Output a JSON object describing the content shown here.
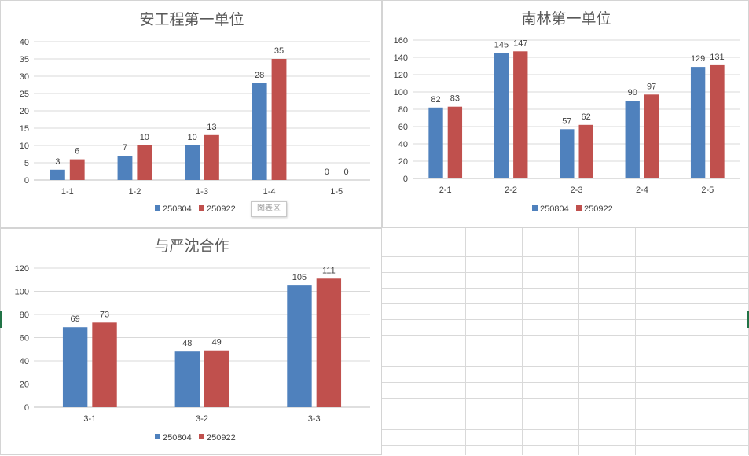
{
  "tooltip": {
    "label": "图表区"
  },
  "colors": {
    "series1": "#4f81bd",
    "series2": "#c0504d",
    "grid": "#d9d9d9",
    "axis": "#bfbfbf"
  },
  "chart_data": [
    {
      "type": "bar",
      "title": "安工程第一单位",
      "categories": [
        "1-1",
        "1-2",
        "1-3",
        "1-4",
        "1-5"
      ],
      "series": [
        {
          "name": "250804",
          "values": [
            3,
            7,
            10,
            28,
            0
          ]
        },
        {
          "name": "250922",
          "values": [
            6,
            10,
            13,
            35,
            0
          ]
        }
      ],
      "yticks": [
        "0",
        "5",
        "10",
        "15",
        "20",
        "25",
        "30",
        "35",
        "40"
      ],
      "ylim": [
        0,
        40
      ],
      "legend": "bottom",
      "grid": true
    },
    {
      "type": "bar",
      "title": "南林第一单位",
      "categories": [
        "2-1",
        "2-2",
        "2-3",
        "2-4",
        "2-5"
      ],
      "series": [
        {
          "name": "250804",
          "values": [
            82,
            145,
            57,
            90,
            129
          ]
        },
        {
          "name": "250922",
          "values": [
            83,
            147,
            62,
            97,
            131
          ]
        }
      ],
      "yticks": [
        "0",
        "20",
        "40",
        "60",
        "80",
        "100",
        "120",
        "140",
        "160"
      ],
      "ylim": [
        0,
        160
      ],
      "legend": "bottom",
      "grid": true
    },
    {
      "type": "bar",
      "title": "与严沈合作",
      "categories": [
        "3-1",
        "3-2",
        "3-3"
      ],
      "series": [
        {
          "name": "250804",
          "values": [
            69,
            48,
            105
          ]
        },
        {
          "name": "250922",
          "values": [
            73,
            49,
            111
          ]
        }
      ],
      "yticks": [
        "0",
        "20",
        "40",
        "60",
        "80",
        "100",
        "120"
      ],
      "ylim": [
        0,
        120
      ],
      "legend": "bottom",
      "grid": true
    }
  ]
}
